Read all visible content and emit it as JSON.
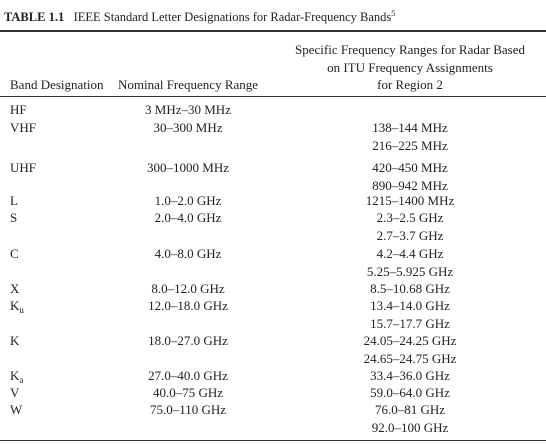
{
  "title": {
    "label": "TABLE 1.1",
    "text": "IEEE Standard Letter Designations for Radar-Frequency Bands",
    "note": "5"
  },
  "header": {
    "band": "Band Designation",
    "nominal": "Nominal Frequency Range",
    "itu": [
      "Specific Frequency Ranges for Radar Based",
      "on ITU Frequency Assignments",
      "for Region 2"
    ]
  },
  "rows": [
    {
      "band": "HF",
      "nominal": "3 MHz–30 MHz",
      "itu": []
    },
    {
      "band": "VHF",
      "nominal": "30–300 MHz",
      "itu": [
        "138–144 MHz",
        "216–225 MHz"
      ]
    },
    {
      "band": "UHF",
      "nominal": "300–1000 MHz",
      "itu": [
        "420–450 MHz",
        "890–942 MHz"
      ]
    },
    {
      "band": "L",
      "nominal": "1.0–2.0 GHz",
      "itu": [
        "1215–1400 MHz"
      ]
    },
    {
      "band": "S",
      "nominal": "2.0–4.0 GHz",
      "itu": [
        "2.3–2.5 GHz",
        "2.7–3.7 GHz"
      ]
    },
    {
      "band": "C",
      "nominal": "4.0–8.0 GHz",
      "itu": [
        "4.2–4.4 GHz",
        "5.25–5.925 GHz"
      ]
    },
    {
      "band": "X",
      "nominal": "8.0–12.0 GHz",
      "itu": [
        "8.5–10.68 GHz"
      ]
    },
    {
      "band": "K",
      "band_sub": "u",
      "nominal": "12.0–18.0 GHz",
      "itu": [
        "13.4–14.0 GHz",
        "15.7–17.7 GHz"
      ]
    },
    {
      "band": "K",
      "nominal": "18.0–27.0 GHz",
      "itu": [
        "24.05–24.25 GHz",
        "24.65–24.75 GHz"
      ]
    },
    {
      "band": "K",
      "band_sub": "a",
      "nominal": "27.0–40.0 GHz",
      "itu": [
        "33.4–36.0 GHz"
      ]
    },
    {
      "band": "V",
      "nominal": "40.0–75 GHz",
      "itu": [
        "59.0–64.0 GHz"
      ]
    },
    {
      "band": "W",
      "nominal": "75.0–110 GHz",
      "itu": [
        "76.0–81 GHz",
        "92.0–100 GHz"
      ]
    }
  ]
}
